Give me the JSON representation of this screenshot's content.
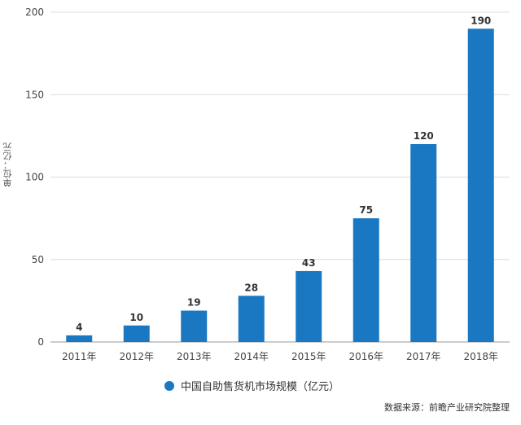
{
  "chart_data": {
    "type": "bar",
    "categories": [
      "2011年",
      "2012年",
      "2013年",
      "2014年",
      "2015年",
      "2016年",
      "2017年",
      "2018年"
    ],
    "values": [
      4,
      10,
      19,
      28,
      43,
      75,
      120,
      190
    ],
    "ylabel": "单位：亿元",
    "yticks": [
      0,
      50,
      100,
      150,
      200
    ],
    "ylim": [
      0,
      200
    ],
    "grid": true,
    "legend": {
      "position": "bottom-center",
      "label": "中国自助售货机市场规模（亿元）"
    },
    "bar_color": "#1a78c2"
  },
  "source_text": "数据来源：前瞻产业研究院整理"
}
